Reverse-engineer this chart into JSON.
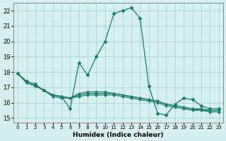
{
  "xlabel": "Humidex (Indice chaleur)",
  "xlim": [
    -0.5,
    23.5
  ],
  "ylim": [
    14.7,
    22.5
  ],
  "xticks": [
    0,
    1,
    2,
    3,
    4,
    5,
    6,
    7,
    8,
    9,
    10,
    11,
    12,
    13,
    14,
    15,
    16,
    17,
    18,
    19,
    20,
    21,
    22,
    23
  ],
  "yticks": [
    15,
    16,
    17,
    18,
    19,
    20,
    21,
    22
  ],
  "bg_color": "#d6efef",
  "line_color": "#1a7a6e",
  "grid_color": "#aad4d4",
  "lines": [
    {
      "x": [
        0,
        1,
        2,
        3,
        4,
        5,
        6,
        7,
        8,
        9,
        10,
        11,
        12,
        13,
        14,
        15,
        16,
        17,
        18,
        19,
        20,
        21,
        22,
        23
      ],
      "y": [
        17.9,
        17.4,
        17.2,
        16.8,
        16.5,
        16.4,
        15.6,
        18.6,
        17.8,
        19.0,
        20.0,
        21.8,
        22.0,
        22.2,
        21.5,
        17.1,
        15.3,
        15.2,
        15.9,
        16.3,
        16.2,
        15.8,
        15.6,
        15.6
      ]
    },
    {
      "x": [
        0,
        1,
        2,
        3,
        4,
        5,
        6,
        7,
        8,
        9,
        10,
        11,
        12,
        13,
        14,
        15,
        16,
        17,
        18,
        19,
        20,
        21,
        22,
        23
      ],
      "y": [
        17.9,
        17.3,
        17.1,
        16.8,
        16.4,
        16.3,
        16.3,
        16.4,
        16.5,
        16.5,
        16.5,
        16.5,
        16.4,
        16.3,
        16.2,
        16.1,
        16.0,
        15.8,
        15.7,
        15.6,
        15.5,
        15.5,
        15.4,
        15.4
      ]
    },
    {
      "x": [
        0,
        1,
        2,
        3,
        4,
        5,
        6,
        7,
        8,
        9,
        10,
        11,
        12,
        13,
        14,
        15,
        16,
        17,
        18,
        19,
        20,
        21,
        22,
        23
      ],
      "y": [
        17.9,
        17.3,
        17.1,
        16.8,
        16.5,
        16.4,
        16.3,
        16.5,
        16.6,
        16.6,
        16.6,
        16.6,
        16.5,
        16.4,
        16.3,
        16.2,
        16.1,
        15.9,
        15.8,
        15.7,
        15.6,
        15.5,
        15.5,
        15.5
      ]
    },
    {
      "x": [
        0,
        1,
        2,
        3,
        4,
        5,
        6,
        7,
        8,
        9,
        10,
        11,
        12,
        13,
        14,
        15,
        16,
        17,
        18,
        19,
        20,
        21,
        22,
        23
      ],
      "y": [
        17.9,
        17.3,
        17.1,
        16.8,
        16.5,
        16.4,
        16.3,
        16.6,
        16.7,
        16.7,
        16.7,
        16.6,
        16.5,
        16.4,
        16.3,
        16.2,
        16.1,
        15.9,
        15.8,
        15.7,
        15.6,
        15.6,
        15.5,
        15.5
      ]
    }
  ]
}
